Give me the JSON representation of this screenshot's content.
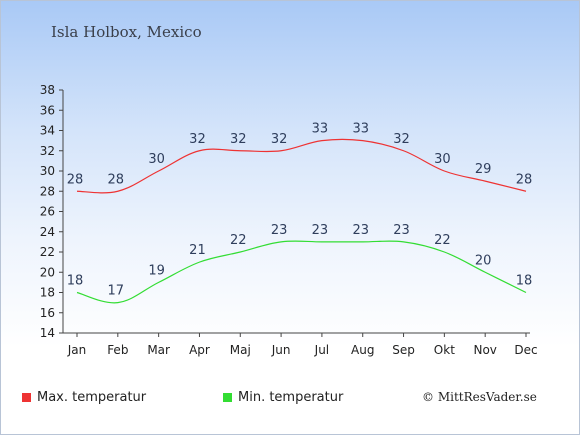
{
  "location": "Isla Holbox, Mexico",
  "copyright": "© MittResVader.se",
  "colors": {
    "max": "#ee3333",
    "min": "#33dd33",
    "axis": "#444444",
    "text": "#2f3e5c"
  },
  "chart_data": {
    "type": "line",
    "title": "Isla Holbox, Mexico",
    "categories": [
      "Jan",
      "Feb",
      "Mar",
      "Apr",
      "Maj",
      "Jun",
      "Jul",
      "Aug",
      "Sep",
      "Okt",
      "Nov",
      "Dec"
    ],
    "yticks": [
      14,
      16,
      18,
      20,
      22,
      24,
      26,
      28,
      30,
      32,
      34,
      36,
      38
    ],
    "ylim": [
      14,
      38
    ],
    "grid": false,
    "legend_position": "bottom-left",
    "series": [
      {
        "name": "Max. temperatur",
        "color": "#ee3333",
        "values": [
          28,
          28,
          30,
          32,
          32,
          32,
          33,
          33,
          32,
          30,
          29,
          28
        ]
      },
      {
        "name": "Min. temperatur",
        "color": "#33dd33",
        "values": [
          18,
          17,
          19,
          21,
          22,
          23,
          23,
          23,
          23,
          22,
          20,
          18
        ]
      }
    ]
  }
}
